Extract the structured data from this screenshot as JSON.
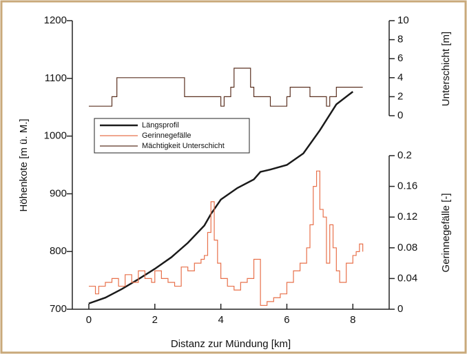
{
  "chart_data": {
    "type": "line",
    "xlabel": "Distanz zur Mündung [km]",
    "ylabel": "Höhenkote [m ü. M.]",
    "y2label": "Gerinnegefälle [-]",
    "y3label": "Unterschicht [m]",
    "xlim": [
      -0.5,
      9.1
    ],
    "xticks": [
      0,
      2,
      4,
      6,
      8
    ],
    "ylim": [
      700,
      1200
    ],
    "yticks": [
      700,
      800,
      900,
      1000,
      1100,
      1200
    ],
    "y2lim": [
      0,
      0.2
    ],
    "y2ticks": [
      0,
      0.04,
      0.08,
      0.12,
      0.16,
      0.2
    ],
    "y3lim": [
      0,
      10
    ],
    "y3ticks": [
      0,
      2,
      4,
      6,
      8,
      10
    ],
    "series": [
      {
        "name": "Längsprofil",
        "color": "#1a1a1a",
        "axis": "y",
        "step": false,
        "x": [
          0,
          0.5,
          1,
          1.5,
          2,
          2.5,
          3,
          3.5,
          3.7,
          4,
          4.5,
          5,
          5.2,
          5.5,
          6,
          6.5,
          7,
          7.5,
          8
        ],
        "values": [
          710,
          720,
          735,
          752,
          770,
          790,
          815,
          845,
          865,
          890,
          910,
          925,
          938,
          942,
          950,
          970,
          1010,
          1055,
          1077
        ]
      },
      {
        "name": "Gerinnegefälle",
        "color": "#e8704a",
        "axis": "y2",
        "step": true,
        "x": [
          0,
          0.2,
          0.3,
          0.5,
          0.7,
          0.9,
          1.1,
          1.3,
          1.5,
          1.7,
          1.9,
          2,
          2.2,
          2.4,
          2.6,
          2.8,
          3,
          3.2,
          3.4,
          3.5,
          3.6,
          3.7,
          3.8,
          3.9,
          4,
          4.2,
          4.4,
          4.6,
          4.8,
          5,
          5.2,
          5.4,
          5.6,
          5.8,
          6,
          6.2,
          6.4,
          6.6,
          6.7,
          6.8,
          6.9,
          7,
          7.1,
          7.2,
          7.3,
          7.4,
          7.5,
          7.6,
          7.8,
          8,
          8.1,
          8.2,
          8.3
        ],
        "values": [
          0.03,
          0.02,
          0.03,
          0.035,
          0.04,
          0.03,
          0.045,
          0.035,
          0.05,
          0.04,
          0.035,
          0.05,
          0.04,
          0.035,
          0.03,
          0.055,
          0.05,
          0.06,
          0.065,
          0.07,
          0.1,
          0.14,
          0.09,
          0.06,
          0.04,
          0.03,
          0.025,
          0.035,
          0.04,
          0.065,
          0.005,
          0.01,
          0.015,
          0.02,
          0.035,
          0.05,
          0.06,
          0.08,
          0.11,
          0.16,
          0.18,
          0.13,
          0.12,
          0.06,
          0.11,
          0.08,
          0.05,
          0.035,
          0.06,
          0.07,
          0.075,
          0.085,
          0.075
        ]
      },
      {
        "name": "Mächtigkeit Unterschicht",
        "color": "#5a3020",
        "axis": "y3",
        "step": true,
        "x": [
          0,
          0.7,
          0.85,
          2.9,
          4,
          4.1,
          4.3,
          4.4,
          4.9,
          5,
          5.5,
          6,
          6.1,
          6.7,
          7.2,
          7.3,
          7.5,
          8.3
        ],
        "values": [
          1,
          2,
          4,
          2,
          1,
          2,
          3,
          5,
          3,
          2,
          1,
          2,
          3,
          2,
          1,
          2,
          3,
          3
        ]
      }
    ]
  }
}
